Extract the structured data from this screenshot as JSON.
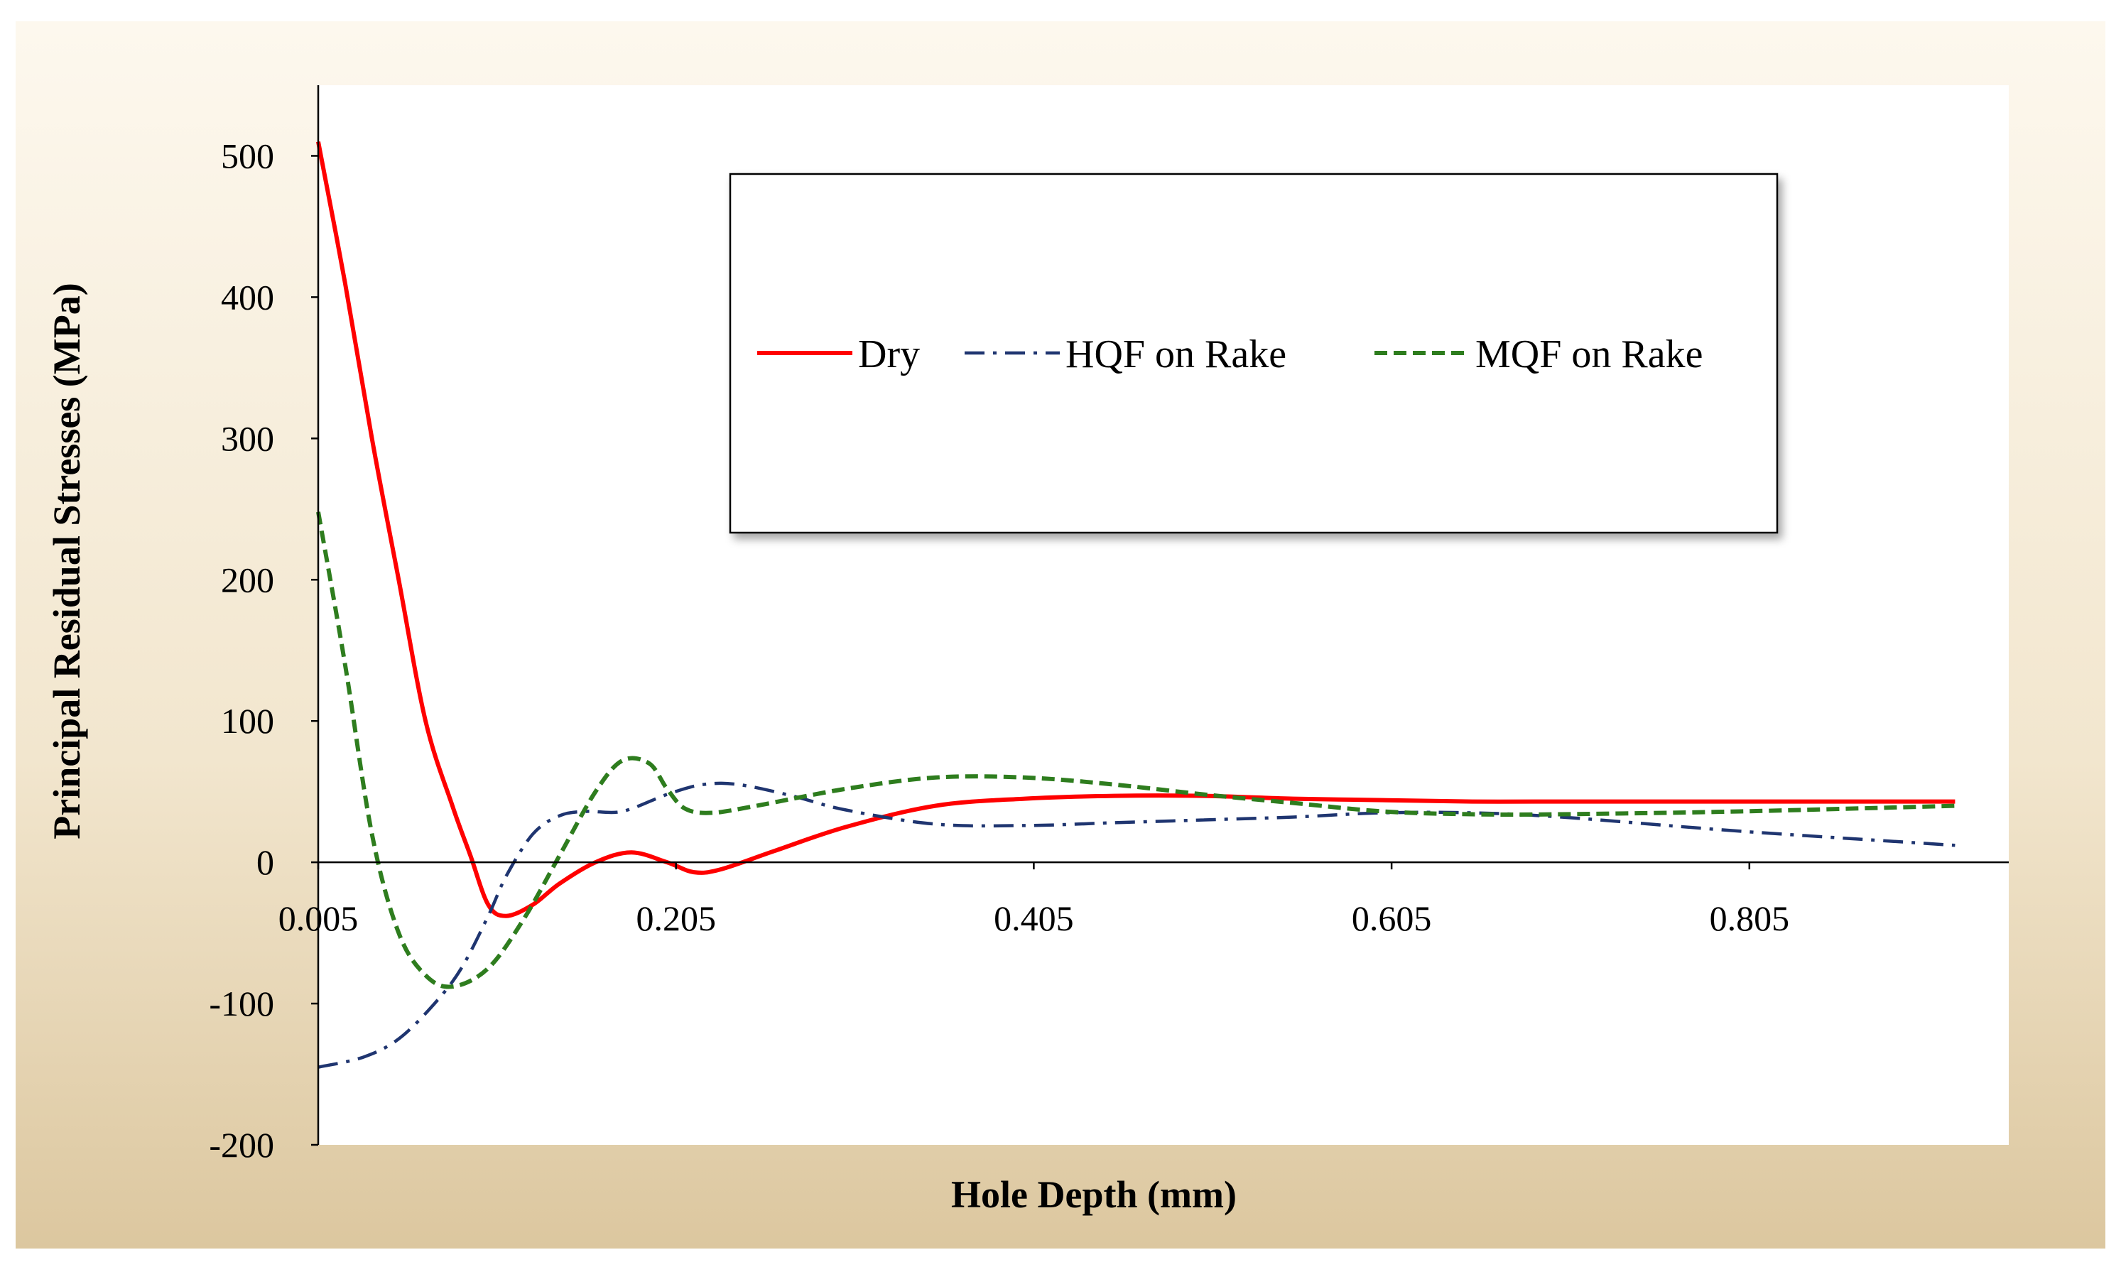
{
  "chart_data": {
    "type": "line",
    "title": "",
    "xlabel": "Hole Depth (mm)",
    "ylabel": "Principal Residual Stresses (MPa)",
    "xlim": [
      0.005,
      0.95
    ],
    "ylim": [
      -200,
      550
    ],
    "x_ticks": [
      0.005,
      0.205,
      0.405,
      0.605,
      0.805
    ],
    "x_tick_labels": [
      "0.005",
      "0.205",
      "0.405",
      "0.605",
      "0.805"
    ],
    "y_ticks": [
      -200,
      -100,
      0,
      100,
      200,
      300,
      400,
      500
    ],
    "y_tick_labels": [
      "-200",
      "-100",
      "0",
      "100",
      "200",
      "300",
      "400",
      "500"
    ],
    "grid": false,
    "legend_position": "top-right",
    "series": [
      {
        "name": "Dry",
        "color": "#ff0000",
        "style": "solid",
        "x": [
          0.005,
          0.02,
          0.035,
          0.05,
          0.065,
          0.08,
          0.09,
          0.1,
          0.11,
          0.125,
          0.14,
          0.16,
          0.18,
          0.2,
          0.215,
          0.23,
          0.26,
          0.3,
          0.35,
          0.4,
          0.45,
          0.5,
          0.55,
          0.6,
          0.65,
          0.7,
          0.8,
          0.92
        ],
        "values": [
          510,
          410,
          300,
          200,
          100,
          40,
          5,
          -30,
          -38,
          -30,
          -15,
          0,
          7,
          0,
          -7,
          -5,
          8,
          25,
          40,
          45,
          47,
          47,
          45,
          44,
          43,
          43,
          43,
          43
        ]
      },
      {
        "name": "HQF on Rake",
        "color": "#1f3570",
        "style": "dashdot",
        "x": [
          0.005,
          0.03,
          0.05,
          0.07,
          0.085,
          0.1,
          0.11,
          0.125,
          0.14,
          0.155,
          0.175,
          0.2,
          0.22,
          0.24,
          0.27,
          0.3,
          0.35,
          0.4,
          0.45,
          0.5,
          0.55,
          0.6,
          0.65,
          0.7,
          0.8,
          0.92
        ],
        "values": [
          -145,
          -138,
          -125,
          -100,
          -75,
          -38,
          -10,
          20,
          33,
          36,
          36,
          48,
          55,
          55,
          47,
          37,
          27,
          26,
          28,
          30,
          32,
          35,
          35,
          32,
          22,
          12
        ]
      },
      {
        "name": "MQF on Rake",
        "color": "#2e7d1e",
        "style": "dashed",
        "x": [
          0.005,
          0.02,
          0.035,
          0.05,
          0.065,
          0.08,
          0.1,
          0.12,
          0.14,
          0.16,
          0.175,
          0.19,
          0.2,
          0.21,
          0.225,
          0.25,
          0.3,
          0.35,
          0.4,
          0.45,
          0.5,
          0.55,
          0.6,
          0.65,
          0.7,
          0.8,
          0.92
        ],
        "values": [
          248,
          140,
          20,
          -50,
          -80,
          -88,
          -75,
          -40,
          5,
          50,
          72,
          70,
          52,
          38,
          35,
          40,
          52,
          60,
          60,
          55,
          48,
          42,
          36,
          34,
          34,
          36,
          40
        ]
      }
    ]
  }
}
